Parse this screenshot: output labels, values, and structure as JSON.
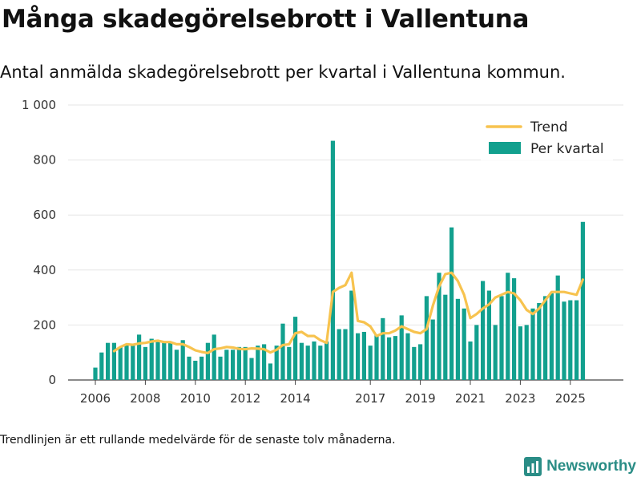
{
  "title": "Många skadegörelsebrott i Vallentuna",
  "subtitle": "Antal anmälda skadegörelsebrott per kvartal i Vallentuna kommun.",
  "footnote": "Trendlinjen är ett rullande medelvärde för de senaste tolv månaderna.",
  "brand": {
    "name": "Newsworthy",
    "icon": "newsworthy-logo-icon"
  },
  "colors": {
    "bar": "#12a08e",
    "trend": "#f7c34f",
    "grid": "#e6e6e6",
    "axis": "#444444"
  },
  "chart_data": {
    "type": "bar",
    "title": "Många skadegörelsebrott i Vallentuna",
    "xlabel": "",
    "ylabel": "",
    "ylim": [
      0,
      1000
    ],
    "yticks": [
      {
        "value": 0,
        "label": "0"
      },
      {
        "value": 200,
        "label": "200"
      },
      {
        "value": 400,
        "label": "400"
      },
      {
        "value": 600,
        "label": "600"
      },
      {
        "value": 800,
        "label": "800"
      },
      {
        "value": 1000,
        "label": "1 000"
      }
    ],
    "xticks": [
      {
        "index": 0,
        "label": "2006"
      },
      {
        "index": 8,
        "label": "2008"
      },
      {
        "index": 16,
        "label": "2010"
      },
      {
        "index": 24,
        "label": "2012"
      },
      {
        "index": 32,
        "label": "2014"
      },
      {
        "index": 44,
        "label": "2017"
      },
      {
        "index": 52,
        "label": "2019"
      },
      {
        "index": 60,
        "label": "2021"
      },
      {
        "index": 68,
        "label": "2023"
      },
      {
        "index": 76,
        "label": "2025"
      }
    ],
    "legend": {
      "position": "top-right",
      "entries": [
        "Trend",
        "Per kvartal"
      ]
    },
    "categories": [
      "2006 Q1",
      "2006 Q2",
      "2006 Q3",
      "2006 Q4",
      "2007 Q1",
      "2007 Q2",
      "2007 Q3",
      "2007 Q4",
      "2008 Q1",
      "2008 Q2",
      "2008 Q3",
      "2008 Q4",
      "2009 Q1",
      "2009 Q2",
      "2009 Q3",
      "2009 Q4",
      "2010 Q1",
      "2010 Q2",
      "2010 Q3",
      "2010 Q4",
      "2011 Q1",
      "2011 Q2",
      "2011 Q3",
      "2011 Q4",
      "2012 Q1",
      "2012 Q2",
      "2012 Q3",
      "2012 Q4",
      "2013 Q1",
      "2013 Q2",
      "2013 Q3",
      "2013 Q4",
      "2014 Q1",
      "2014 Q2",
      "2014 Q3",
      "2014 Q4",
      "2015 Q1",
      "2015 Q2",
      "2015 Q3",
      "2015 Q4",
      "2016 Q1",
      "2016 Q2",
      "2016 Q3",
      "2016 Q4",
      "2017 Q1",
      "2017 Q2",
      "2017 Q3",
      "2017 Q4",
      "2018 Q1",
      "2018 Q2",
      "2018 Q3",
      "2018 Q4",
      "2019 Q1",
      "2019 Q2",
      "2019 Q3",
      "2019 Q4",
      "2020 Q1",
      "2020 Q2",
      "2020 Q3",
      "2020 Q4",
      "2021 Q1",
      "2021 Q2",
      "2021 Q3",
      "2021 Q4",
      "2022 Q1",
      "2022 Q2",
      "2022 Q3",
      "2022 Q4",
      "2023 Q1",
      "2023 Q2",
      "2023 Q3",
      "2023 Q4",
      "2024 Q1",
      "2024 Q2",
      "2024 Q3",
      "2024 Q4",
      "2025 Q1",
      "2025 Q2",
      "2025 Q3",
      "2025 Q4"
    ],
    "series": [
      {
        "name": "Per kvartal",
        "type": "bar",
        "values": [
          45,
          100,
          135,
          135,
          120,
          130,
          125,
          165,
          120,
          150,
          140,
          135,
          140,
          110,
          145,
          85,
          70,
          85,
          135,
          165,
          85,
          110,
          110,
          120,
          120,
          80,
          125,
          130,
          60,
          125,
          205,
          120,
          230,
          135,
          125,
          140,
          125,
          140,
          870,
          185,
          185,
          325,
          170,
          175,
          125,
          165,
          225,
          155,
          160,
          235,
          170,
          120,
          130,
          305,
          220,
          390,
          310,
          555,
          295,
          260,
          140,
          200,
          360,
          325,
          200,
          305,
          390,
          370,
          195,
          200,
          260,
          280,
          305,
          315,
          380,
          285,
          290,
          290,
          575,
          null
        ]
      },
      {
        "name": "Trend",
        "type": "line",
        "values": [
          null,
          null,
          null,
          105,
          120,
          130,
          128,
          133,
          135,
          140,
          143,
          138,
          138,
          130,
          130,
          120,
          108,
          102,
          98,
          112,
          115,
          120,
          118,
          113,
          112,
          115,
          114,
          112,
          100,
          110,
          127,
          130,
          170,
          175,
          160,
          160,
          145,
          135,
          320,
          335,
          345,
          390,
          215,
          210,
          195,
          160,
          170,
          170,
          180,
          195,
          185,
          175,
          170,
          185,
          270,
          340,
          385,
          390,
          360,
          310,
          225,
          240,
          260,
          275,
          300,
          310,
          320,
          315,
          290,
          255,
          240,
          260,
          290,
          320,
          320,
          320,
          315,
          310,
          365,
          null
        ]
      }
    ]
  }
}
